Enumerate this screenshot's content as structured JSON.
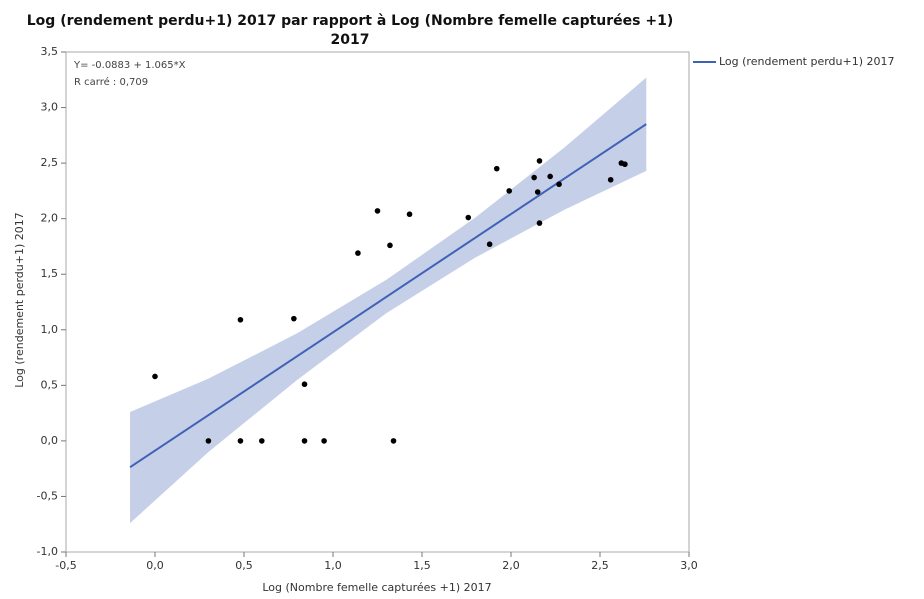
{
  "chart_data": {
    "type": "scatter",
    "title": [
      "Log (rendement perdu+1) 2017 par rapport à Log (Nombre femelle capturées +1)",
      "2017"
    ],
    "x_label": "Log (Nombre femelle capturées +1) 2017",
    "y_label": "Log (rendement perdu+1) 2017",
    "annotations": [
      "Y= -0.0883 + 1.065*X",
      "R carré : 0,709"
    ],
    "xlim": [
      -0.5,
      3.0
    ],
    "ylim": [
      -1.0,
      3.5
    ],
    "xticks": [
      {
        "value": -0.5,
        "label": "-0,5"
      },
      {
        "value": 0,
        "label": "0,0"
      },
      {
        "value": 0.5,
        "label": "0,5"
      },
      {
        "value": 1,
        "label": "1,0"
      },
      {
        "value": 1.5,
        "label": "1,5"
      },
      {
        "value": 2,
        "label": "2,0"
      },
      {
        "value": 2.5,
        "label": "2,5"
      },
      {
        "value": 3,
        "label": "3,0"
      }
    ],
    "yticks": [
      {
        "value": -1,
        "label": "-1,0"
      },
      {
        "value": -0.5,
        "label": "-0,5"
      },
      {
        "value": 0,
        "label": "0,0"
      },
      {
        "value": 0.5,
        "label": "0,5"
      },
      {
        "value": 1,
        "label": "1,0"
      },
      {
        "value": 1.5,
        "label": "1,5"
      },
      {
        "value": 2,
        "label": "2,0"
      },
      {
        "value": 2.5,
        "label": "2,5"
      },
      {
        "value": 3,
        "label": "3,0"
      },
      {
        "value": 3.5,
        "label": "3,5"
      }
    ],
    "points": {
      "color": "#000000",
      "x": [
        0.0,
        0.3,
        0.48,
        0.48,
        0.6,
        0.78,
        0.84,
        0.84,
        0.95,
        1.14,
        1.25,
        1.32,
        1.34,
        1.43,
        1.76,
        1.88,
        1.92,
        1.99,
        2.13,
        2.15,
        2.16,
        2.16,
        2.22,
        2.27,
        2.56,
        2.62,
        2.64
      ],
      "values": [
        0.58,
        0.0,
        1.09,
        0.0,
        0.0,
        1.1,
        0.51,
        0.0,
        0.0,
        1.69,
        2.07,
        1.76,
        0.0,
        2.04,
        2.01,
        1.77,
        2.45,
        2.25,
        2.37,
        2.24,
        2.52,
        1.96,
        2.38,
        2.31,
        2.35,
        2.5,
        2.49
      ]
    },
    "series": [
      {
        "name": "Log (rendement perdu+1) 2017",
        "color": "#4062b5",
        "x": [
          -0.14,
          2.76
        ],
        "values": [
          -0.237,
          2.851
        ]
      }
    ],
    "band": {
      "color": "#c5cfe8",
      "x": [
        -0.14,
        0.3,
        0.8,
        1.3,
        1.8,
        2.3,
        2.76
      ],
      "upper": [
        0.26,
        0.56,
        0.97,
        1.45,
        2.01,
        2.64,
        3.27
      ],
      "lower": [
        -0.74,
        -0.1,
        0.55,
        1.15,
        1.65,
        2.08,
        2.43
      ]
    }
  }
}
